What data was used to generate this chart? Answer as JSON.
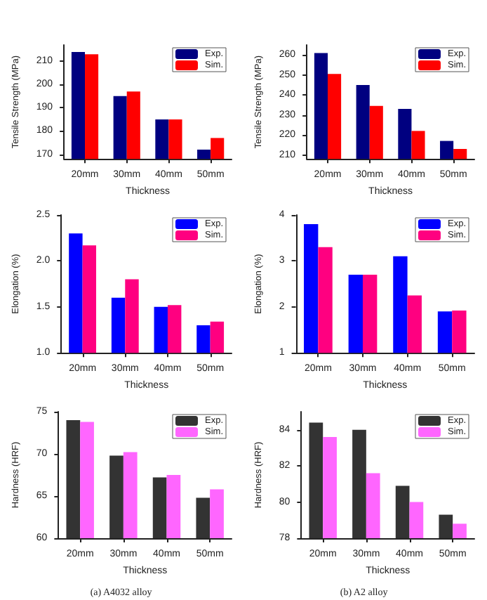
{
  "chart_data": [
    {
      "type": "bar",
      "xlabel": "Thickness",
      "ylabel": "Tensile Strength (MPa)",
      "categories": [
        "20mm",
        "30mm",
        "40mm",
        "50mm"
      ],
      "ylim": [
        168,
        217
      ],
      "yticks": [
        170,
        180,
        190,
        200,
        210
      ],
      "legend": "top right",
      "grid": false,
      "series": [
        {
          "name": "Exp.",
          "color": "#000080",
          "values": [
            214,
            195,
            185,
            172
          ]
        },
        {
          "name": "Sim.",
          "color": "#ff0000",
          "values": [
            213,
            197,
            185,
            177
          ]
        }
      ]
    },
    {
      "type": "bar",
      "xlabel": "Thickness",
      "ylabel": "Tensile Strength (MPa)",
      "categories": [
        "20mm",
        "30mm",
        "40mm",
        "50mm"
      ],
      "ylim": [
        208,
        265
      ],
      "yticks": [
        210,
        220,
        230,
        240,
        250,
        260
      ],
      "legend": "top right",
      "grid": false,
      "series": [
        {
          "name": "Exp.",
          "color": "#000080",
          "values": [
            261,
            245,
            233,
            217
          ]
        },
        {
          "name": "Sim.",
          "color": "#ff0000",
          "values": [
            250.5,
            234.5,
            222,
            213
          ]
        }
      ]
    },
    {
      "type": "bar",
      "xlabel": "Thickness",
      "ylabel": "Elongation (%)",
      "categories": [
        "20mm",
        "30mm",
        "40mm",
        "50mm"
      ],
      "ylim": [
        1,
        2.5
      ],
      "yticks": [
        {
          "value": 1,
          "label": "1.0"
        },
        {
          "value": 1.5,
          "label": "1.5"
        },
        {
          "value": 2,
          "label": "2.0"
        },
        {
          "value": 2.5,
          "label": "2.5"
        }
      ],
      "legend": "top right",
      "grid": false,
      "series": [
        {
          "name": "Exp.",
          "color": "#0000ff",
          "values": [
            2.3,
            1.6,
            1.5,
            1.3
          ]
        },
        {
          "name": "Sim.",
          "color": "#ff0080",
          "values": [
            2.17,
            1.8,
            1.52,
            1.34
          ]
        }
      ]
    },
    {
      "type": "bar",
      "xlabel": "Thickness",
      "ylabel": "Elongation (%)",
      "categories": [
        "20mm",
        "30mm",
        "40mm",
        "50mm"
      ],
      "ylim": [
        1,
        4
      ],
      "yticks": [
        1,
        2,
        3,
        4
      ],
      "legend": "top right",
      "grid": false,
      "series": [
        {
          "name": "Exp.",
          "color": "#0000ff",
          "values": [
            3.8,
            2.7,
            3.1,
            1.9
          ]
        },
        {
          "name": "Sim.",
          "color": "#ff0080",
          "values": [
            3.3,
            2.7,
            2.25,
            1.92
          ]
        }
      ]
    },
    {
      "type": "bar",
      "xlabel": "Thickness",
      "ylabel": "Hardness (HRF)",
      "categories": [
        "20mm",
        "30mm",
        "40mm",
        "50mm"
      ],
      "ylim": [
        60,
        75
      ],
      "yticks": [
        60,
        65,
        70,
        75
      ],
      "legend": "top right",
      "grid": false,
      "annotations": [
        "(a) A4032 alloy"
      ],
      "series": [
        {
          "name": "Exp.",
          "color": "#333333",
          "values": [
            74,
            69.8,
            67.2,
            64.8
          ]
        },
        {
          "name": "Sim.",
          "color": "#ff66ff",
          "values": [
            73.8,
            70.2,
            67.5,
            65.8
          ]
        }
      ]
    },
    {
      "type": "bar",
      "xlabel": "Thickness",
      "ylabel": "Hardness (HRF)",
      "categories": [
        "20mm",
        "30mm",
        "40mm",
        "50mm"
      ],
      "ylim": [
        78,
        85
      ],
      "yticks": [
        78,
        80,
        82,
        84
      ],
      "legend": "top right",
      "grid": false,
      "annotations": [
        "(b) A2 alloy"
      ],
      "series": [
        {
          "name": "Exp.",
          "color": "#333333",
          "values": [
            84.4,
            84.0,
            80.9,
            79.3
          ]
        },
        {
          "name": "Sim.",
          "color": "#ff66ff",
          "values": [
            83.6,
            81.6,
            80.0,
            78.8
          ]
        }
      ]
    }
  ]
}
